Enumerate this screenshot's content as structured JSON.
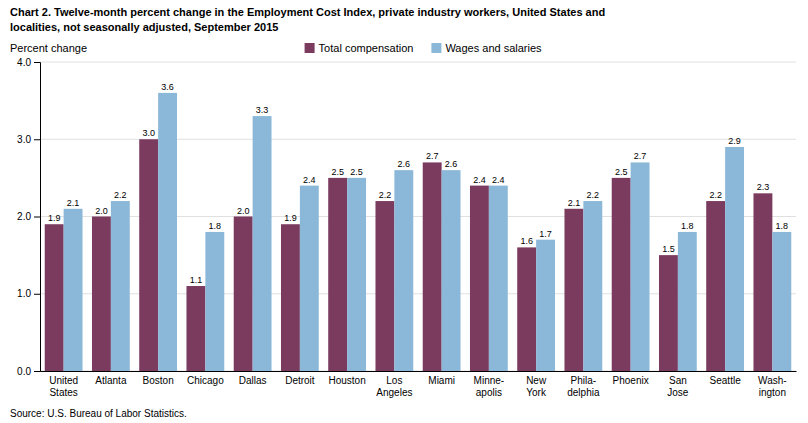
{
  "chart_data": {
    "type": "bar",
    "title": "Chart 2. Twelve-month percent change in the Employment Cost Index, private industry workers, United States and\nlocalities, not seasonally adjusted, September 2015",
    "ylabel": "Percent change",
    "source": "Source: U.S. Bureau of Labor Statistics.",
    "categories": [
      "United\nStates",
      "Atlanta",
      "Boston",
      "Chicago",
      "Dallas",
      "Detroit",
      "Houston",
      "Los\nAngeles",
      "Miami",
      "Minne-\napolis",
      "New\nYork",
      "Phila-\ndelphia",
      "Phoenix",
      "San\nJose",
      "Seattle",
      "Wash-\nington"
    ],
    "series": [
      {
        "name": "Total compensation",
        "color": "#7B3B5E",
        "values": [
          1.9,
          2.0,
          3.0,
          1.1,
          2.0,
          1.9,
          2.5,
          2.2,
          2.7,
          2.4,
          1.6,
          2.1,
          2.5,
          1.5,
          2.2,
          2.3
        ],
        "value_labels": [
          "1.9",
          "2.0",
          "3.0",
          "1.1",
          "2.0",
          "1.9",
          "2.5",
          "2.2",
          "2.7",
          "2.4",
          "1.6",
          "2.1",
          "2.5",
          "1.5",
          "2.2",
          "2.3"
        ]
      },
      {
        "name": "Wages and salaries",
        "color": "#8BB8D8",
        "values": [
          2.1,
          2.2,
          3.6,
          1.8,
          3.3,
          2.4,
          2.5,
          2.6,
          2.6,
          2.4,
          1.7,
          2.2,
          2.7,
          1.8,
          2.9,
          1.8
        ],
        "value_labels": [
          "2.1",
          "2.2",
          "3.6",
          "1.8",
          "3.3",
          "2.4",
          "2.5",
          "2.6",
          "2.6",
          "2.4",
          "1.7",
          "2.2",
          "2.7",
          "1.8",
          "2.9",
          "1.8"
        ]
      }
    ],
    "ylim": [
      0.0,
      4.0
    ],
    "yticks": [
      {
        "value": 0,
        "label": "0.0"
      },
      {
        "value": 1,
        "label": "1.0"
      },
      {
        "value": 2,
        "label": "2.0"
      },
      {
        "value": 3,
        "label": "3.0"
      },
      {
        "value": 4,
        "label": "4.0"
      }
    ],
    "grid": true,
    "legend": "top",
    "data_labels": true
  }
}
